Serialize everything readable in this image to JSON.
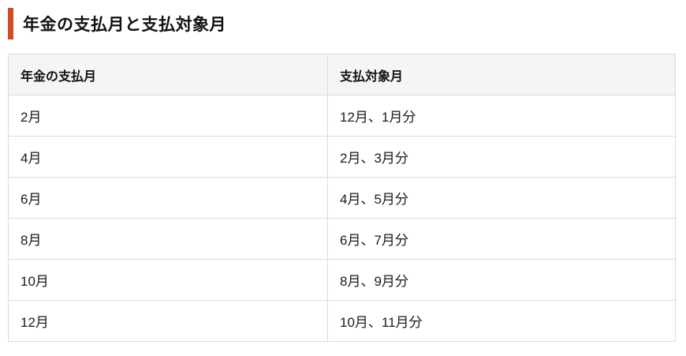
{
  "page": {
    "title": "年金の支払月と支払対象月",
    "accent_color": "#d24a26"
  },
  "table": {
    "headers": [
      "年金の支払月",
      "支払対象月"
    ],
    "rows": [
      [
        "2月",
        "12月、1月分"
      ],
      [
        "4月",
        "2月、3月分"
      ],
      [
        "6月",
        "4月、5月分"
      ],
      [
        "8月",
        "6月、7月分"
      ],
      [
        "10月",
        "8月、9月分"
      ],
      [
        "12月",
        "10月、11月分"
      ]
    ]
  }
}
